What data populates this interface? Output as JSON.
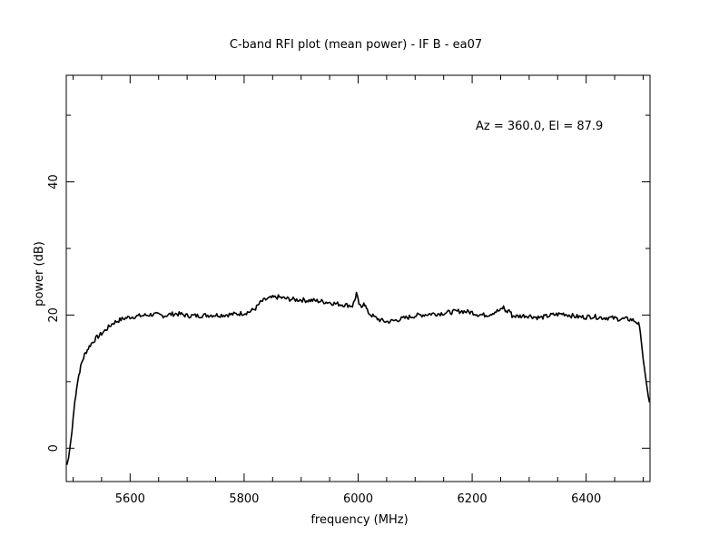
{
  "chart_data": {
    "type": "line",
    "title": "C-band RFI plot (mean power) - IF B - ea07",
    "xlabel": "frequency (MHz)",
    "ylabel": "power (dB)",
    "annotation": "Az = 360.0, El = 87.9",
    "xlim": [
      5488,
      6512
    ],
    "ylim": [
      -5,
      56
    ],
    "x_ticks": [
      5600,
      5800,
      6000,
      6200,
      6400
    ],
    "x_tick_labels": [
      "5600",
      "5800",
      "6000",
      "6200",
      "6400"
    ],
    "y_ticks": [
      0,
      20,
      40
    ],
    "y_tick_labels": [
      "0",
      "20",
      "40"
    ],
    "grid": false,
    "series": [
      {
        "color": "#000000",
        "x": [
          5489,
          5492,
          5495,
          5498,
          5500,
          5503,
          5506,
          5510,
          5515,
          5520,
          5525,
          5530,
          5540,
          5550,
          5560,
          5570,
          5580,
          5590,
          5600,
          5610,
          5620,
          5630,
          5640,
          5650,
          5660,
          5670,
          5680,
          5690,
          5700,
          5720,
          5740,
          5760,
          5780,
          5800,
          5810,
          5820,
          5830,
          5840,
          5850,
          5860,
          5870,
          5880,
          5890,
          5900,
          5910,
          5920,
          5930,
          5940,
          5950,
          5960,
          5970,
          5980,
          5990,
          5994,
          5997,
          6000,
          6003,
          6006,
          6010,
          6013,
          6016,
          6020,
          6030,
          6040,
          6050,
          6060,
          6070,
          6080,
          6090,
          6100,
          6110,
          6120,
          6130,
          6140,
          6150,
          6160,
          6170,
          6180,
          6190,
          6200,
          6210,
          6220,
          6230,
          6240,
          6250,
          6255,
          6260,
          6265,
          6270,
          6280,
          6290,
          6300,
          6310,
          6320,
          6330,
          6340,
          6350,
          6360,
          6370,
          6380,
          6390,
          6400,
          6410,
          6420,
          6430,
          6440,
          6450,
          6460,
          6470,
          6480,
          6488,
          6492,
          6495,
          6498,
          6500,
          6503,
          6506,
          6509,
          6511
        ],
        "y": [
          -2.5,
          -1.5,
          0.5,
          2.5,
          4.5,
          7,
          9,
          11,
          12.8,
          14,
          14.8,
          15.5,
          16.5,
          17.2,
          18,
          18.8,
          19.2,
          19.5,
          19.7,
          19.8,
          19.9,
          20,
          20.1,
          20,
          19.9,
          20.1,
          20.2,
          20.1,
          19.9,
          19.9,
          20,
          20,
          20.1,
          20.3,
          20.5,
          21,
          22,
          22.4,
          22.6,
          22.7,
          22.5,
          22.4,
          22.3,
          22.3,
          22.2,
          22.2,
          22.1,
          22,
          21.9,
          21.7,
          21.6,
          21.5,
          21.4,
          22.2,
          23.3,
          22.1,
          21.3,
          21.2,
          22,
          21.3,
          20.6,
          20.2,
          19.6,
          19.2,
          19,
          19.1,
          19.3,
          19.5,
          19.7,
          19.9,
          20,
          20.1,
          20.2,
          20.2,
          20.3,
          20.4,
          20.5,
          20.6,
          20.5,
          20.4,
          20.1,
          20,
          20.1,
          20.5,
          20.7,
          21.2,
          20.4,
          20.8,
          19.9,
          19.8,
          19.9,
          19.9,
          19.7,
          19.6,
          19.8,
          20,
          20.1,
          20.2,
          20,
          19.8,
          19.7,
          19.7,
          19.8,
          19.7,
          19.6,
          19.6,
          19.5,
          19.4,
          19.4,
          19.3,
          19,
          18.6,
          17.4,
          15,
          13.4,
          11.5,
          9.6,
          7.8,
          6.9
        ]
      }
    ]
  }
}
